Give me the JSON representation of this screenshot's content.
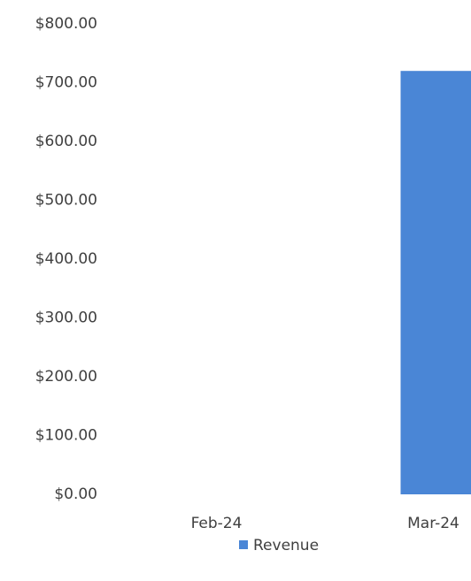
{
  "chart_data": {
    "type": "bar",
    "categories": [
      "Feb-24",
      "Mar-24"
    ],
    "series": [
      {
        "name": "Revenue",
        "color": "#4a86d6",
        "values": [
          0,
          720
        ]
      }
    ],
    "ylim": [
      0,
      800
    ],
    "yticks": [
      {
        "value": 0,
        "label": "$0.00"
      },
      {
        "value": 100,
        "label": "$100.00"
      },
      {
        "value": 200,
        "label": "$200.00"
      },
      {
        "value": 300,
        "label": "$300.00"
      },
      {
        "value": 400,
        "label": "$400.00"
      },
      {
        "value": 500,
        "label": "$500.00"
      },
      {
        "value": 600,
        "label": "$600.00"
      },
      {
        "value": 700,
        "label": "$700.00"
      },
      {
        "value": 800,
        "label": "$800.00"
      }
    ],
    "grid": false,
    "legend": "bottom"
  }
}
